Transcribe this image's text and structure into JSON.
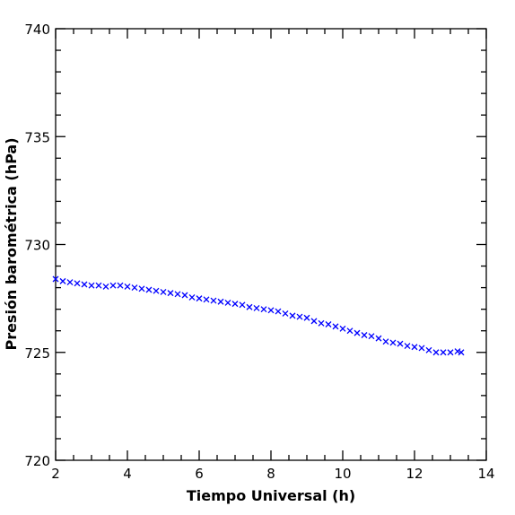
{
  "chart_data": {
    "type": "scatter",
    "title": "",
    "xlabel": "Tiempo Universal (h)",
    "ylabel": "Presión barométrica (hPa)",
    "xlim": [
      2,
      14
    ],
    "ylim": [
      720,
      740
    ],
    "xticks": [
      2,
      4,
      6,
      8,
      10,
      12,
      14
    ],
    "yticks": [
      720,
      725,
      730,
      735,
      740
    ],
    "marker": "x",
    "color": "#0000ff",
    "grid": false,
    "legend": "none",
    "series": [
      {
        "x": [
          2.0,
          2.2,
          2.4,
          2.6,
          2.8,
          3.0,
          3.2,
          3.4,
          3.6,
          3.8,
          4.0,
          4.2,
          4.4,
          4.6,
          4.8,
          5.0,
          5.2,
          5.4,
          5.6,
          5.8,
          6.0,
          6.2,
          6.4,
          6.6,
          6.8,
          7.0,
          7.2,
          7.4,
          7.6,
          7.8,
          8.0,
          8.2,
          8.4,
          8.6,
          8.8,
          9.0,
          9.2,
          9.4,
          9.6,
          9.8,
          10.0,
          10.2,
          10.4,
          10.6,
          10.8,
          11.0,
          11.2,
          11.4,
          11.6,
          11.8,
          12.0,
          12.2,
          12.4,
          12.6,
          12.8,
          13.0,
          13.2,
          13.3
        ],
        "y": [
          728.4,
          728.3,
          728.25,
          728.2,
          728.15,
          728.1,
          728.1,
          728.05,
          728.1,
          728.1,
          728.05,
          728.0,
          727.95,
          727.9,
          727.85,
          727.8,
          727.75,
          727.7,
          727.65,
          727.55,
          727.5,
          727.45,
          727.4,
          727.35,
          727.3,
          727.25,
          727.2,
          727.1,
          727.05,
          727.0,
          726.95,
          726.9,
          726.8,
          726.7,
          726.65,
          726.6,
          726.45,
          726.35,
          726.3,
          726.2,
          726.1,
          726.0,
          725.9,
          725.8,
          725.75,
          725.65,
          725.5,
          725.45,
          725.4,
          725.3,
          725.25,
          725.2,
          725.1,
          725.0,
          725.0,
          725.0,
          725.05,
          725.0
        ]
      }
    ]
  }
}
